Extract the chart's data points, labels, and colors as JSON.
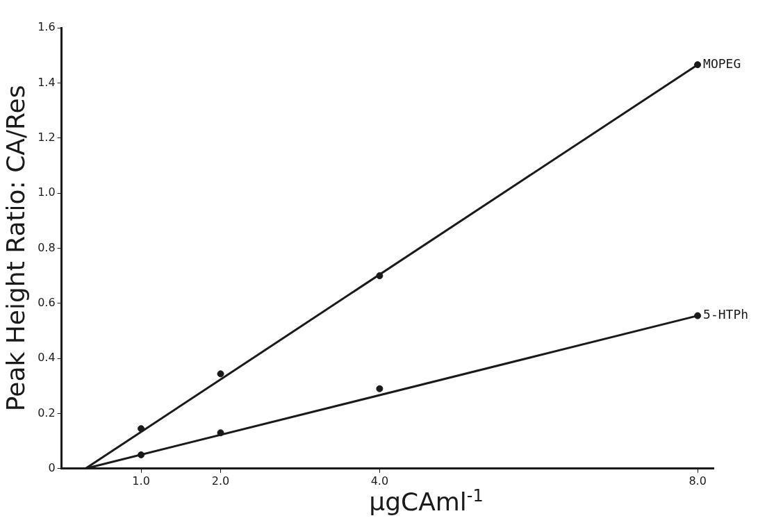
{
  "chart_data": {
    "type": "scatter",
    "xlabel": "μgCAml$^{-1}$",
    "ylabel": "Peak Height Ratio: CA/Res",
    "xlim": [
      0,
      8.2
    ],
    "xticks": [
      {
        "value": 1,
        "label": "1.0"
      },
      {
        "value": 2,
        "label": "2.0"
      },
      {
        "value": 4,
        "label": "4.0"
      },
      {
        "value": 8,
        "label": "8.0"
      }
    ],
    "ylim": [
      0,
      1.6
    ],
    "yticks": [
      0,
      0.2,
      0.4,
      0.6,
      0.8,
      {
        "value": 1,
        "label": "1.0"
      },
      1.2,
      1.4,
      1.6
    ],
    "legend": false,
    "series": [
      {
        "name": "MOPEG",
        "color": "#1a1a1a",
        "marker": "circle",
        "x": [
          1,
          2,
          4,
          8
        ],
        "values": [
          0.145,
          0.344,
          0.7,
          1.466
        ]
      },
      {
        "name": "5-HTPh",
        "color": "#1a1a1a",
        "marker": "circle",
        "x": [
          1,
          2,
          4,
          8
        ],
        "values": [
          0.05,
          0.13,
          0.29,
          0.555
        ]
      },
      {
        "type": "line",
        "color": "#1a1a1a",
        "x": [
          0.3,
          8
        ],
        "values": [
          0,
          1.466
        ]
      },
      {
        "type": "line",
        "color": "#1a1a1a",
        "x": [
          0.3,
          8
        ],
        "values": [
          0,
          0.555
        ]
      }
    ]
  }
}
